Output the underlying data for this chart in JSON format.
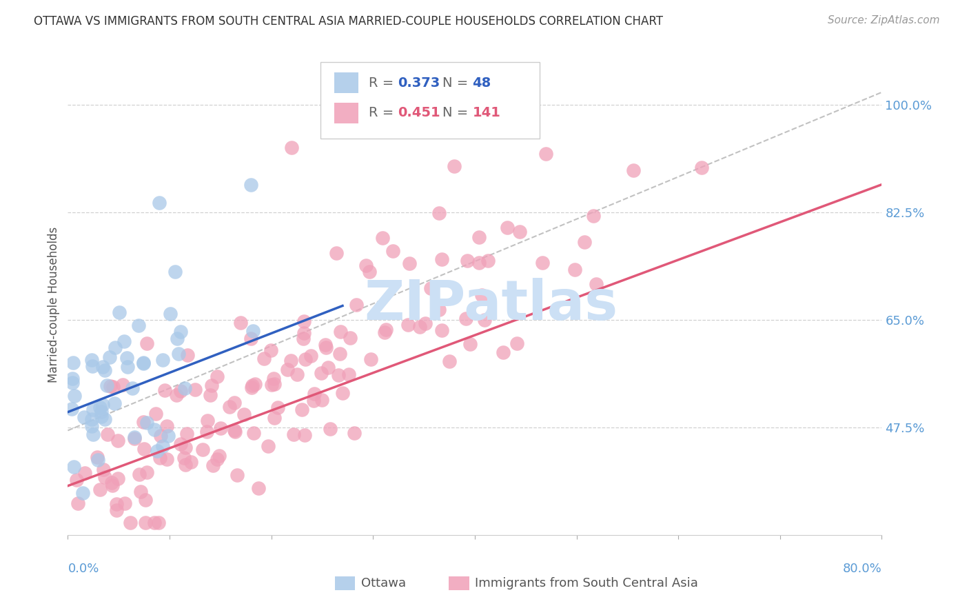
{
  "title": "OTTAWA VS IMMIGRANTS FROM SOUTH CENTRAL ASIA MARRIED-COUPLE HOUSEHOLDS CORRELATION CHART",
  "source": "Source: ZipAtlas.com",
  "ylabel": "Married-couple Households",
  "ytick_labels": [
    "100.0%",
    "82.5%",
    "65.0%",
    "47.5%"
  ],
  "ytick_values": [
    1.0,
    0.825,
    0.65,
    0.475
  ],
  "xlim": [
    0.0,
    0.8
  ],
  "ylim": [
    0.3,
    1.05
  ],
  "ottawa_R": 0.373,
  "ottawa_N": 48,
  "immigrants_R": 0.451,
  "immigrants_N": 141,
  "ottawa_color": "#a8c8e8",
  "immigrants_color": "#f0a0b8",
  "regression_ottawa_color": "#3060c0",
  "regression_immigrants_color": "#e05878",
  "diagonal_color": "#bbbbbb",
  "background_color": "#ffffff",
  "grid_color": "#cccccc",
  "title_color": "#333333",
  "axis_label_color": "#5b9bd5",
  "watermark": "ZIPatlas",
  "watermark_color": "#cce0f5",
  "xtick_positions": [
    0.0,
    0.1,
    0.2,
    0.3,
    0.4,
    0.5,
    0.6,
    0.7,
    0.8
  ]
}
